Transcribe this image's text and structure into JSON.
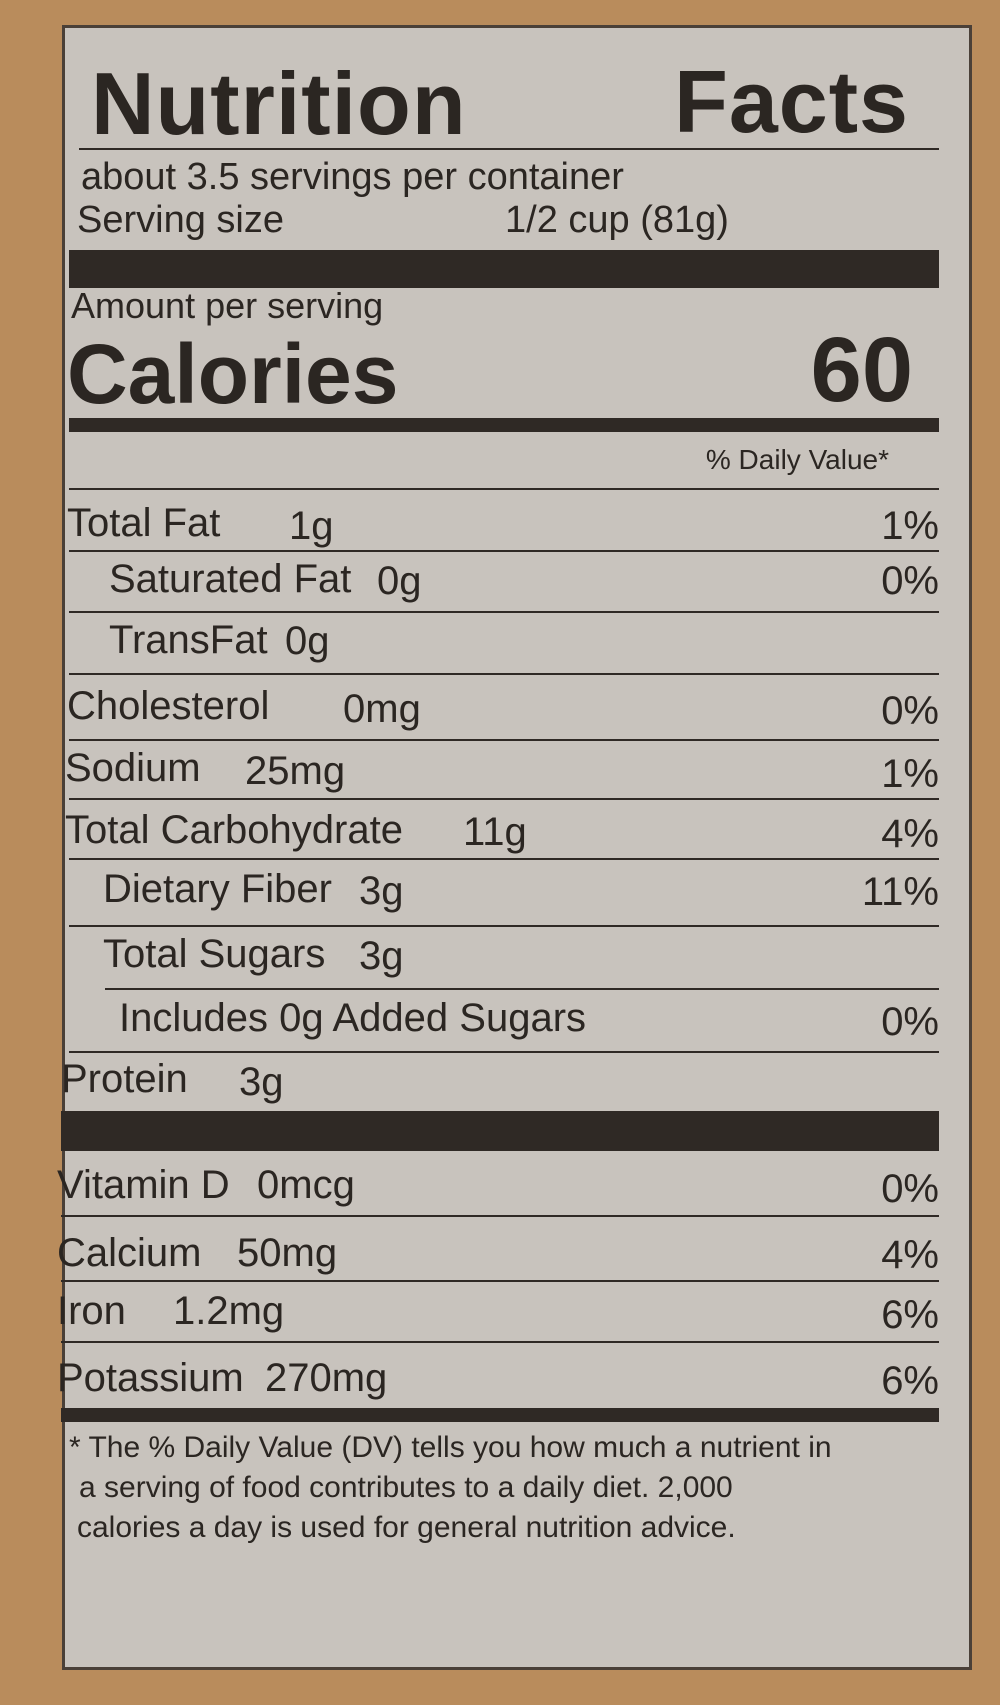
{
  "label": {
    "title_left": "Nutrition",
    "title_right": "Facts",
    "servings": "about 3.5 servings per container",
    "serving_size_label": "Serving size",
    "serving_size_value": "1/2 cup (81g)",
    "amount_per_serving": "Amount per serving",
    "calories_label": "Calories",
    "calories_value": "60",
    "dv_header": "% Daily Value*"
  },
  "rows": [
    {
      "name": "Total Fat",
      "amount": "1g",
      "dv": "1%"
    },
    {
      "name": "Saturated Fat",
      "amount": "0g",
      "dv": "0%"
    },
    {
      "name": "TransFat",
      "amount": "0g",
      "dv": ""
    },
    {
      "name": "Cholesterol",
      "amount": "0mg",
      "dv": "0%"
    },
    {
      "name": "Sodium",
      "amount": "25mg",
      "dv": "1%"
    },
    {
      "name": "Total Carbohydrate",
      "amount": "11g",
      "dv": "4%"
    },
    {
      "name": "Dietary Fiber",
      "amount": "3g",
      "dv": "11%"
    },
    {
      "name": "Total Sugars",
      "amount": "3g",
      "dv": ""
    },
    {
      "name": "Includes 0g Added Sugars",
      "amount": "",
      "dv": "0%"
    },
    {
      "name": "Protein",
      "amount": "3g",
      "dv": ""
    }
  ],
  "vitamins": [
    {
      "name": "Vitamin D",
      "amount": "0mcg",
      "dv": "0%"
    },
    {
      "name": "Calcium",
      "amount": "50mg",
      "dv": "4%"
    },
    {
      "name": "Iron",
      "amount": "1.2mg",
      "dv": "6%"
    },
    {
      "name": "Potassium",
      "amount": "270mg",
      "dv": "6%"
    }
  ],
  "footnote": [
    "* The % Daily Value (DV) tells you how much a nutrient in",
    "a serving of food contributes to a daily diet. 2,000",
    "calories a day is used for general nutrition advice."
  ]
}
